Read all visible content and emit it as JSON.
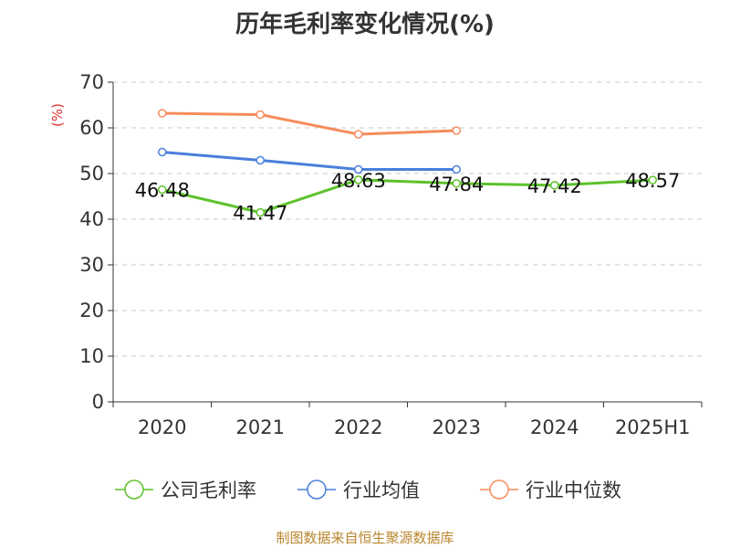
{
  "title": "历年毛利率变化情况(%)",
  "source": "制图数据来自恒生聚源数据库",
  "chart_data": {
    "type": "line",
    "title": "历年毛利率变化情况(%)",
    "ylabel": "(%)",
    "xlabel": "",
    "categories": [
      "2020",
      "2021",
      "2022",
      "2023",
      "2024",
      "2025H1"
    ],
    "ylim": [
      0,
      70
    ],
    "yticks": [
      0,
      10,
      20,
      30,
      40,
      50,
      60,
      70
    ],
    "grid": true,
    "legend_position": "bottom",
    "series": [
      {
        "name": "公司毛利率",
        "color": "#5cc22b",
        "values": [
          46.48,
          41.47,
          48.63,
          47.84,
          47.42,
          48.57
        ],
        "labels": [
          "46.48",
          "41.47",
          "48.63",
          "47.84",
          "47.42",
          "48.57"
        ]
      },
      {
        "name": "行业均值",
        "color": "#4a7fdb",
        "values": [
          54.7,
          52.9,
          50.9,
          50.9,
          null,
          null
        ]
      },
      {
        "name": "行业中位数",
        "color": "#f78c5c",
        "values": [
          63.2,
          62.9,
          58.6,
          59.4,
          null,
          null
        ]
      }
    ],
    "ylabel_color": "#e03030"
  }
}
